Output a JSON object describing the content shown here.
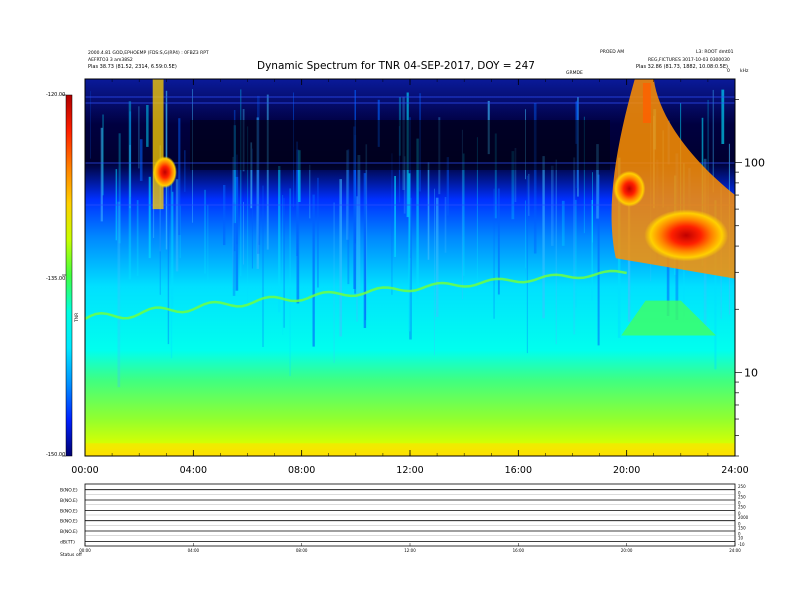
{
  "title": "Dynamic Spectrum for TNR 04-SEP-2017, DOY = 247",
  "header": {
    "left_line1": "2000.4.81 GOD,EPHOEMP (FDS:S,G(RP4) : 0FBZ3 RPT",
    "left_line2": "AEFRTO3 3 am38S2",
    "left_line3": "Plas 38.73 (81.52, 2314, 6.59:0.5E)",
    "right_top_a": "PROED AM",
    "right_top_b": "L3: ROOT dmt01",
    "right_line2": "REG,FICTURES 3017-10-03 0300030",
    "right_line3": "Plas 32.86 (81.73, 1882, 10.08:0.5E)",
    "marker_label": "GRMDE"
  },
  "colorbar": {
    "top_label": "-120.00",
    "mid_label": "-135.00",
    "bottom_label": "-150.00",
    "axis_title": "TNR",
    "colors": [
      "#b00000",
      "#ff2000",
      "#ff8000",
      "#ffd000",
      "#c8ff00",
      "#40ff40",
      "#00ffe0",
      "#00e8ff",
      "#0090ff",
      "#0020ff",
      "#000070"
    ]
  },
  "right_axis": {
    "unit": "kHz",
    "corner": "0"
  },
  "chart_data": {
    "type": "heatmap",
    "title": "Dynamic Spectrum for TNR 04-SEP-2017, DOY = 247",
    "x_ticks": [
      "00:00",
      "04:00",
      "08:00",
      "12:00",
      "16:00",
      "20:00",
      "24:00"
    ],
    "x_range_hours": [
      0,
      24
    ],
    "y_scale": "log",
    "y_range_khz": [
      4,
      250
    ],
    "y_tick_labels": [
      {
        "value": 100,
        "label": "100"
      },
      {
        "value": 10,
        "label": "10"
      }
    ],
    "color_range": [
      -150,
      -120
    ],
    "features": [
      {
        "name": "type III burst",
        "time_hours": [
          2.3,
          3.3
        ],
        "freq_khz": [
          60,
          250
        ]
      },
      {
        "name": "type II burst",
        "time_hours": [
          19.2,
          24
        ],
        "freq_khz": [
          25,
          250
        ]
      },
      {
        "name": "plasma line",
        "time_hours": [
          0,
          24
        ],
        "freq_khz": [
          18,
          30
        ]
      }
    ]
  },
  "housekeeping": {
    "rows": [
      {
        "label": "B(NO.E)",
        "right_top": "250",
        "right_bottom": "0"
      },
      {
        "label": "B(NO.E)",
        "right_top": "250",
        "right_bottom": "0"
      },
      {
        "label": "B(NO.E)",
        "right_top": "250",
        "right_bottom": "0"
      },
      {
        "label": "B(NO.E)",
        "right_top": "2000",
        "right_bottom": "0"
      },
      {
        "label": "B(NO.E)",
        "right_top": "150",
        "right_bottom": "0"
      },
      {
        "label": "dB(TT)",
        "right_top": "10",
        "right_bottom": "-10"
      }
    ],
    "time_ticks": [
      "00:00",
      "04:00",
      "08:00",
      "12:00",
      "16:00",
      "20:00",
      "24:00"
    ],
    "status_label": "Status",
    "status_value": "off"
  }
}
